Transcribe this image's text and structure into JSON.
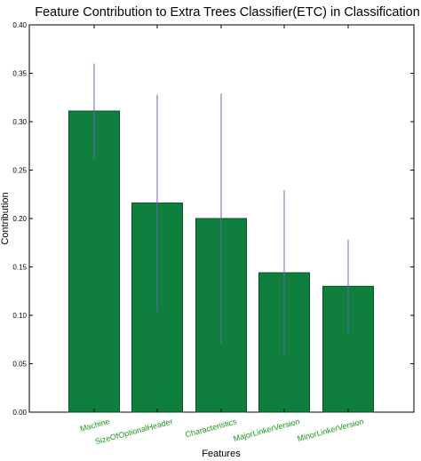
{
  "chart_data": {
    "type": "bar",
    "title": "Feature Contribution to Extra Trees Classifier(ETC) in Classification",
    "xlabel": "Features",
    "ylabel": "Contribution",
    "categories": [
      "Machine",
      "SizeOfOptionalHeader",
      "Characteristics",
      "MajorLinkerVersion",
      "MinorLinkerVersion"
    ],
    "values": [
      0.311,
      0.216,
      0.2,
      0.144,
      0.13
    ],
    "error": [
      0.049,
      0.112,
      0.129,
      0.085,
      0.048
    ],
    "ylim": [
      0,
      0.4
    ],
    "yticks": [
      "0.00",
      "0.05",
      "0.10",
      "0.15",
      "0.20",
      "0.25",
      "0.30",
      "0.35",
      "0.40"
    ],
    "grid": false,
    "colors": {
      "bar": "#0e7f3d",
      "bar_edge": "#0a4f26",
      "error": "#6666bb",
      "tick_label": "#1a9a1a"
    }
  }
}
